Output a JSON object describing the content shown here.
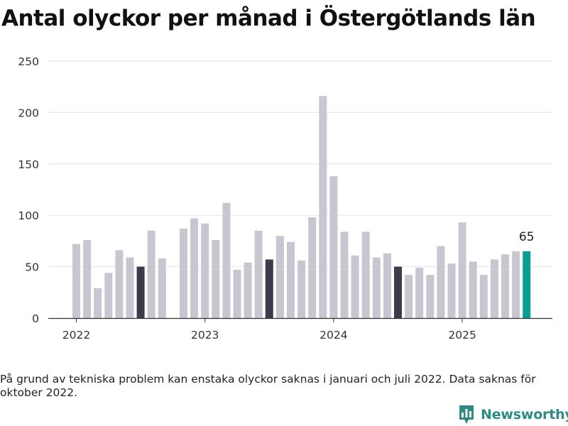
{
  "title": "Antal olyckor per månad i Östergötlands län",
  "footnote": "På grund av tekniska problem kan enstaka olyckor saknas i januari och juli 2022. Data saknas för oktober 2022.",
  "brand": {
    "name": "Newsworthy",
    "color": "#2e8b83"
  },
  "colors": {
    "default": "#c8c7d1",
    "july": "#3d3b4a",
    "latest": "#0a9d92",
    "grid": "#e3e3e3",
    "axis": "#333333"
  },
  "chart_data": {
    "type": "bar",
    "title": "Antal olyckor per månad i Östergötlands län",
    "xlabel": "",
    "ylabel": "",
    "ylim": [
      0,
      250
    ],
    "yticks": [
      0,
      50,
      100,
      150,
      200,
      250
    ],
    "xtick_labels": [
      "2022",
      "2023",
      "2024",
      "2025"
    ],
    "grid": true,
    "series": [
      {
        "values": [
          72,
          76,
          29,
          44,
          66,
          59,
          50,
          85,
          58,
          null,
          87,
          97,
          92,
          76,
          112,
          47,
          54,
          85,
          57,
          80,
          74,
          56,
          98,
          216,
          138,
          84,
          61,
          84,
          59,
          63,
          50,
          42,
          49,
          42,
          70,
          53,
          93,
          55,
          42,
          57,
          62,
          65,
          65
        ],
        "highlight": {
          "6": "july",
          "18": "july",
          "30": "july",
          "42": "latest"
        },
        "data_labels": {
          "42": "65"
        }
      }
    ]
  }
}
